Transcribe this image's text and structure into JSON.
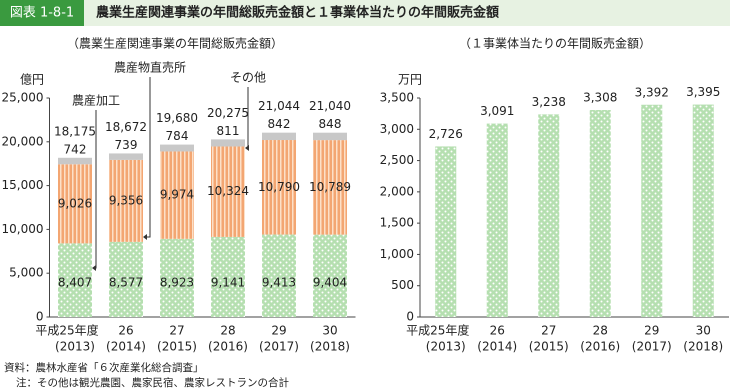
{
  "header": {
    "label": "図表 1-8-1",
    "title": "農業生産関連事業の年間総販売金額と１事業体当たりの年間販売金額"
  },
  "chart_data": [
    {
      "type": "stacked_bar",
      "title": "（農業生産関連事業の年間総販売金額）",
      "y_label": "億円",
      "categories": [
        [
          "平成25年度",
          "(2013)"
        ],
        [
          "26",
          "(2014)"
        ],
        [
          "27",
          "(2015)"
        ],
        [
          "28",
          "(2016)"
        ],
        [
          "29",
          "(2017)"
        ],
        [
          "30",
          "(2018)"
        ]
      ],
      "series": [
        {
          "name": "農産加工",
          "color": "#b5dfb0",
          "values": [
            8407,
            8577,
            8923,
            9141,
            9413,
            9404
          ],
          "value_labels": [
            "8,407",
            "8,577",
            "8,923",
            "9,141",
            "9,413",
            "9,404"
          ]
        },
        {
          "name": "農産物直売所",
          "color": "#f3a672",
          "values": [
            9026,
            9356,
            9974,
            10324,
            10790,
            10789
          ],
          "value_labels": [
            "9,026",
            "9,356",
            "9,974",
            "10,324",
            "10,790",
            "10,789"
          ]
        },
        {
          "name": "その他",
          "color": "#c8c8c8",
          "values": [
            742,
            739,
            784,
            811,
            842,
            848
          ],
          "value_labels": [
            "742",
            "739",
            "784",
            "811",
            "842",
            "848"
          ]
        }
      ],
      "totals": [
        18175,
        18672,
        19680,
        20275,
        21044,
        21040
      ],
      "total_labels": [
        "18,175",
        "18,672",
        "19,680",
        "20,275",
        "21,044",
        "21,040"
      ],
      "ylim": [
        0,
        25000
      ],
      "yticks": [
        0,
        {
          "value": 5000,
          "label": "5,000"
        },
        {
          "value": 10000,
          "label": "10,000"
        },
        {
          "value": 15000,
          "label": "15,000"
        },
        {
          "value": 20000,
          "label": "20,000"
        },
        {
          "value": 25000,
          "label": "25,000"
        }
      ]
    },
    {
      "type": "bar",
      "title": "（１事業体当たりの年間販売金額）",
      "y_label": "万円",
      "categories": [
        [
          "平成25年度",
          "(2013)"
        ],
        [
          "26",
          "(2014)"
        ],
        [
          "27",
          "(2015)"
        ],
        [
          "28",
          "(2016)"
        ],
        [
          "29",
          "(2017)"
        ],
        [
          "30",
          "(2018)"
        ]
      ],
      "color": "#b5dfb0",
      "values": [
        2726,
        3091,
        3238,
        3308,
        3392,
        3395
      ],
      "value_labels": [
        "2,726",
        "3,091",
        "3,238",
        "3,308",
        "3,392",
        "3,395"
      ],
      "ylim": [
        0,
        3500
      ],
      "yticks": [
        0,
        500,
        {
          "value": 1000,
          "label": "1,000"
        },
        {
          "value": 1500,
          "label": "1,500"
        },
        {
          "value": 2000,
          "label": "2,000"
        },
        {
          "value": 2500,
          "label": "2,500"
        },
        {
          "value": 3000,
          "label": "3,000"
        },
        {
          "value": 3500,
          "label": "3,500"
        }
      ]
    }
  ],
  "notes": [
    "資料：農林水産省「６次産業化総合調査」",
    "注：その他は観光農園、農家民宿、農家レストランの合計"
  ]
}
